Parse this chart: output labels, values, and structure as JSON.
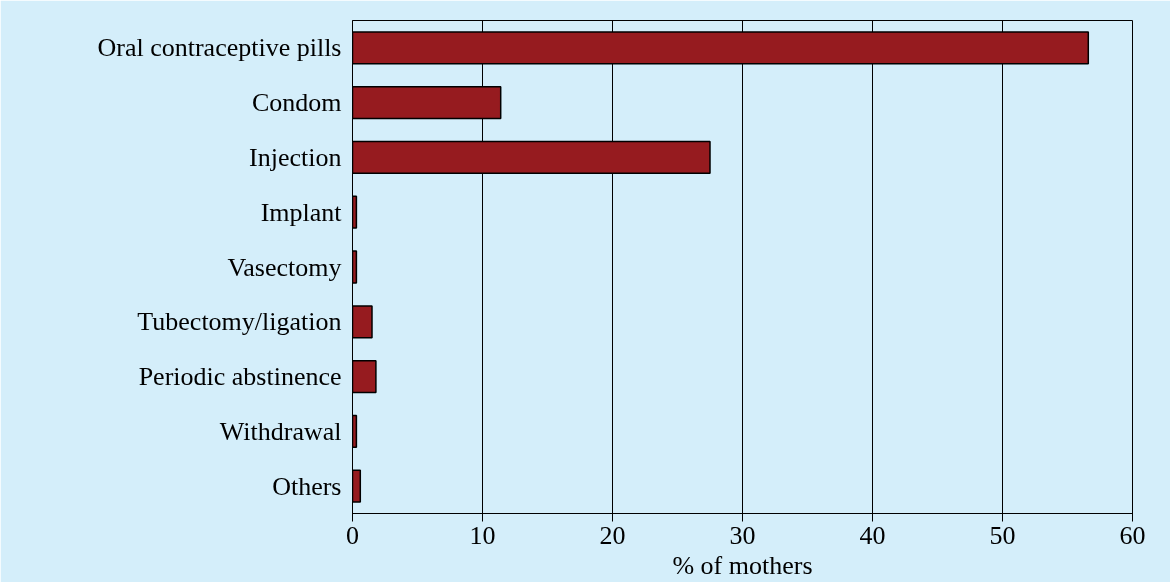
{
  "chart_data": {
    "type": "bar",
    "orientation": "horizontal",
    "xlabel": "% of mothers",
    "categories": [
      "Oral contraceptive pills",
      "Condom",
      "Injection",
      "Implant",
      "Vasectomy",
      "Tubectomy/ligation",
      "Periodic abstinence",
      "Withdrawal",
      "Others"
    ],
    "values": [
      56.6,
      11.4,
      27.5,
      0.3,
      0.3,
      1.5,
      1.8,
      0.3,
      0.6
    ],
    "color": "#961b1f",
    "xlim": [
      0,
      60
    ],
    "xticks": [
      0,
      10,
      20,
      30,
      40,
      50,
      60
    ],
    "grid": "x"
  }
}
